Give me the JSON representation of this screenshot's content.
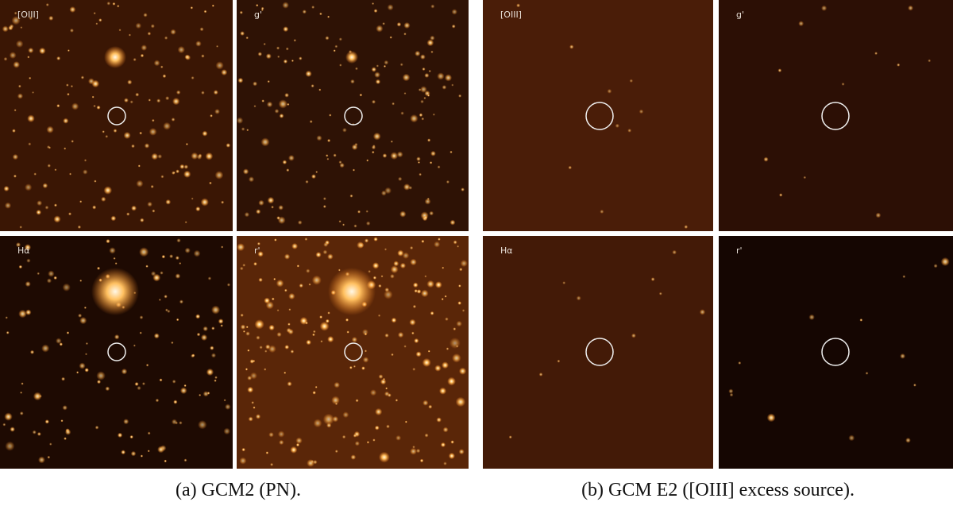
{
  "figures": [
    {
      "caption": "(a)  GCM2 (PN).",
      "panels": [
        {
          "label": "[OIII]"
        },
        {
          "label": "g'"
        },
        {
          "label": "Hα"
        },
        {
          "label": "r'"
        }
      ]
    },
    {
      "caption": "(b)  GCM E2 ([OIII] excess source).",
      "panels": [
        {
          "label": "[OIII]"
        },
        {
          "label": "g'"
        },
        {
          "label": "Hα"
        },
        {
          "label": "r'"
        }
      ]
    }
  ]
}
